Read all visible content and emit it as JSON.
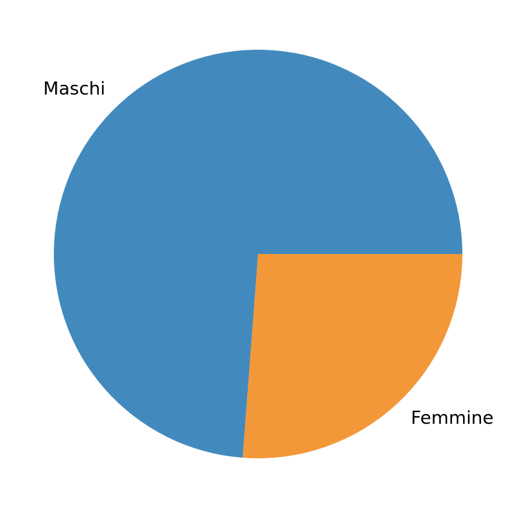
{
  "chart_data": {
    "type": "pie",
    "title": "",
    "categories": [
      "Maschi",
      "Femmine"
    ],
    "values": [
      73.8,
      26.2
    ],
    "colors": [
      "#428abd",
      "#f39838"
    ],
    "start_angle_deg": 0,
    "direction": "counterclockwise",
    "legend": "none"
  }
}
